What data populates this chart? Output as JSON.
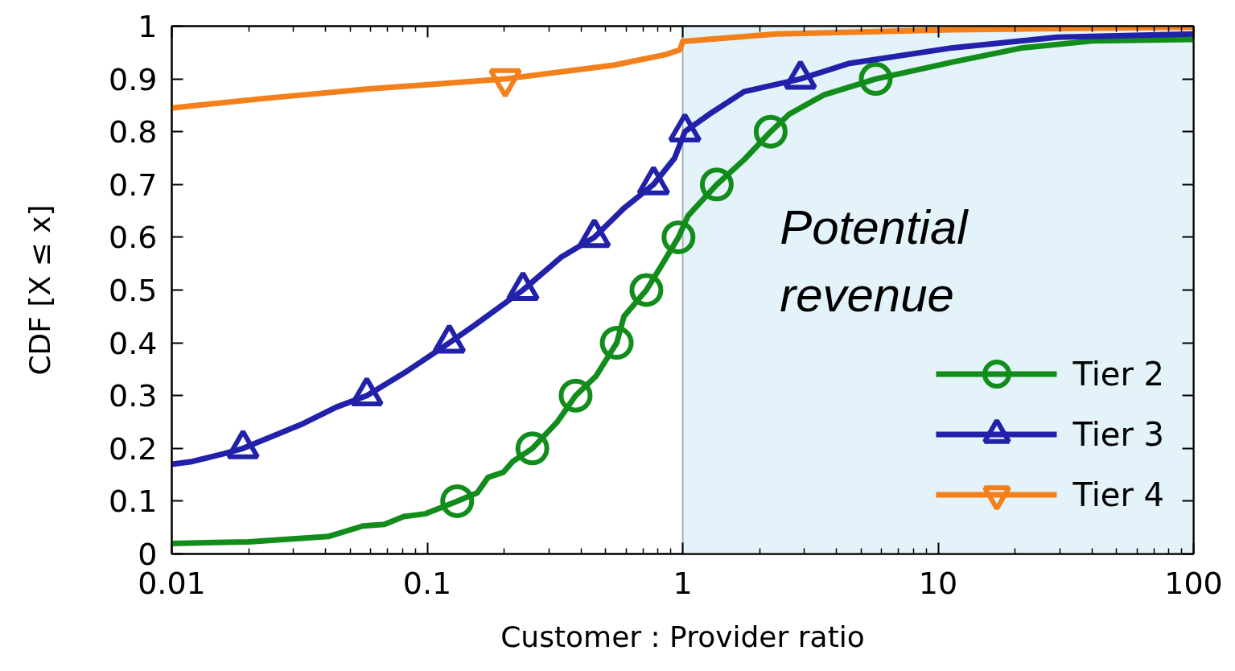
{
  "chart_data": {
    "type": "line",
    "xlabel": "Customer : Provider ratio",
    "ylabel": "CDF [X ≤ x]",
    "log": "x",
    "xlim": [
      0.01,
      100
    ],
    "xticks": [
      0.01,
      0.1,
      1,
      10,
      100
    ],
    "ylim": [
      0,
      1
    ],
    "yticks": [
      0,
      0.1,
      0.2,
      0.3,
      0.4,
      0.5,
      0.6,
      0.7,
      0.8,
      0.9,
      1
    ],
    "legend": "bottom right",
    "line_style": "solid",
    "bands": [
      {
        "axis": "x",
        "from": 1,
        "to": 100,
        "label": "Potential revenue",
        "color": "#e3f3f9"
      }
    ],
    "series": [
      {
        "name": "Tier 2",
        "color": "#128c1a",
        "x": [
          0.01,
          0.02,
          0.041,
          0.056,
          0.068,
          0.081,
          0.098,
          0.131,
          0.157,
          0.173,
          0.199,
          0.216,
          0.258,
          0.324,
          0.381,
          0.458,
          0.552,
          0.589,
          0.721,
          0.832,
          0.963,
          1.05,
          1.36,
          1.74,
          2.21,
          2.61,
          3.58,
          5.7,
          11.4,
          21.4,
          40.2,
          100
        ],
        "values": [
          0.02,
          0.023,
          0.033,
          0.053,
          0.056,
          0.071,
          0.076,
          0.1,
          0.116,
          0.145,
          0.155,
          0.175,
          0.2,
          0.251,
          0.3,
          0.337,
          0.4,
          0.45,
          0.5,
          0.549,
          0.6,
          0.641,
          0.7,
          0.747,
          0.8,
          0.833,
          0.87,
          0.9,
          0.932,
          0.959,
          0.972,
          0.975
        ]
      },
      {
        "type": "scatter",
        "marker": "circle",
        "color": "#128c1a",
        "x": [
          0.131,
          0.258,
          0.381,
          0.552,
          0.721,
          0.963,
          1.36,
          2.21,
          5.7
        ],
        "values": [
          0.1,
          0.2,
          0.3,
          0.4,
          0.5,
          0.6,
          0.7,
          0.8,
          0.9
        ]
      },
      {
        "name": "Tier 3",
        "color": "#2121aa",
        "x": [
          0.01,
          0.012,
          0.016,
          0.019,
          0.032,
          0.044,
          0.058,
          0.082,
          0.122,
          0.153,
          0.237,
          0.334,
          0.451,
          0.589,
          0.769,
          0.93,
          1.02,
          1.27,
          1.74,
          2.89,
          4.45,
          11.4,
          29.3,
          100
        ],
        "values": [
          0.17,
          0.175,
          0.19,
          0.2,
          0.245,
          0.278,
          0.3,
          0.344,
          0.4,
          0.433,
          0.5,
          0.562,
          0.6,
          0.655,
          0.7,
          0.75,
          0.8,
          0.833,
          0.876,
          0.9,
          0.929,
          0.959,
          0.979,
          0.985
        ]
      },
      {
        "type": "scatter",
        "marker": "triangle",
        "color": "#2121aa",
        "x": [
          0.019,
          0.058,
          0.122,
          0.237,
          0.451,
          0.769,
          1.02,
          2.89
        ],
        "values": [
          0.2,
          0.3,
          0.4,
          0.5,
          0.6,
          0.7,
          0.8,
          0.9
        ]
      },
      {
        "name": "Tier 4",
        "color": "#f3801a",
        "x": [
          0.01,
          0.023,
          0.059,
          0.202,
          0.536,
          0.857,
          0.975,
          1.0,
          2.32,
          11.4,
          55,
          100
        ],
        "values": [
          0.845,
          0.863,
          0.881,
          0.9,
          0.926,
          0.946,
          0.955,
          0.971,
          0.985,
          0.993,
          0.997,
          0.998
        ]
      },
      {
        "type": "scatter",
        "marker": "triangle_down",
        "color": "#f3801a",
        "x": [
          0.202
        ],
        "values": [
          0.9
        ]
      }
    ]
  }
}
